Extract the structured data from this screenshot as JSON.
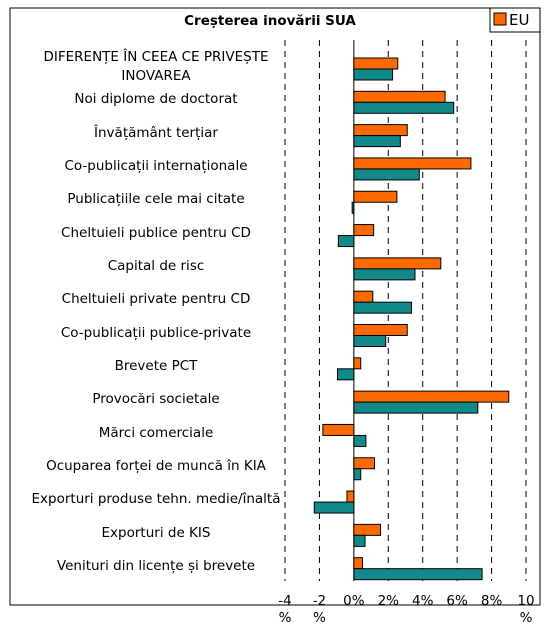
{
  "chart_data": {
    "type": "bar",
    "orientation": "horizontal",
    "title": "Creșterea inovării SUA",
    "categories": [
      "DIFERENȚE ÎN CEEA CE PRIVEȘTE INOVAREA",
      "Noi diplome de doctorat",
      "Învățământ terțiar",
      "Co-publicații internaționale",
      "Publicațiile cele mai citate",
      "Cheltuieli publice pentru CD",
      "Capital de risc",
      "Cheltuieli private pentru CD",
      "Co-publicații publice-private",
      "Brevete PCT",
      "Provocări societale",
      "Mărci comerciale",
      "Ocuparea forței de muncă în KIA",
      "Exporturi produse tehn. medie/înaltă",
      "Exporturi de KIS",
      "Venituri din licențe și brevete"
    ],
    "series": [
      {
        "name": "EU",
        "color": "#ff6a00",
        "values": [
          2.55,
          5.3,
          3.1,
          6.8,
          2.5,
          1.15,
          5.05,
          1.1,
          3.1,
          0.4,
          9.0,
          -1.8,
          1.2,
          -0.4,
          1.55,
          0.5
        ]
      },
      {
        "color": "#138a8a",
        "values": [
          2.25,
          5.8,
          2.7,
          3.8,
          -0.1,
          -0.9,
          3.55,
          3.35,
          1.85,
          -0.95,
          7.2,
          0.7,
          0.4,
          -2.3,
          0.65,
          7.45
        ]
      }
    ],
    "xlim": [
      -4,
      10
    ],
    "xticks": [
      {
        "value": -4,
        "label": "-4 %"
      },
      {
        "value": -2,
        "label": "-2 %"
      },
      {
        "value": 0,
        "label": "0%"
      },
      {
        "value": 2,
        "label": "2%"
      },
      {
        "value": 4,
        "label": "4%"
      },
      {
        "value": 6,
        "label": "6%"
      },
      {
        "value": 8,
        "label": "8%"
      },
      {
        "value": 10,
        "label": "10 %"
      }
    ],
    "grid": true,
    "legend": "top-right"
  }
}
